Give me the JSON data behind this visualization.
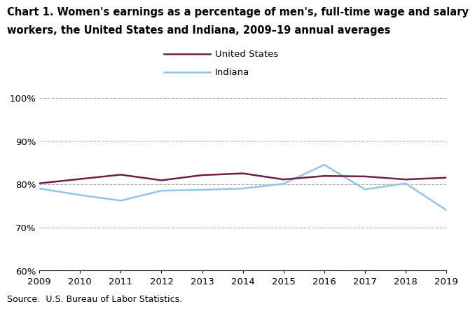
{
  "title_line1": "Chart 1. Women's earnings as a percentage of men's, full-time wage and salary",
  "title_line2": "workers, the United States and Indiana, 2009–19 annual averages",
  "years": [
    2009,
    2010,
    2011,
    2012,
    2013,
    2014,
    2015,
    2016,
    2017,
    2018,
    2019
  ],
  "us_values": [
    80.2,
    81.2,
    82.2,
    80.9,
    82.1,
    82.5,
    81.1,
    81.9,
    81.8,
    81.1,
    81.5
  ],
  "indiana_values": [
    79.0,
    77.5,
    76.2,
    78.5,
    78.7,
    79.0,
    80.1,
    84.5,
    78.8,
    80.2,
    74.0
  ],
  "us_color": "#6d1f47",
  "indiana_color": "#91c6e7",
  "ylim_min": 60,
  "ylim_max": 100,
  "yticks": [
    60,
    70,
    80,
    90,
    100
  ],
  "xlim_min": 2009,
  "xlim_max": 2019,
  "source_text": "Source:  U.S. Bureau of Labor Statistics.",
  "legend_us": "United States",
  "legend_indiana": "Indiana",
  "title_fontsize": 10.5,
  "axis_fontsize": 9.5,
  "source_fontsize": 9,
  "line_width": 1.8,
  "background_color": "#ffffff"
}
